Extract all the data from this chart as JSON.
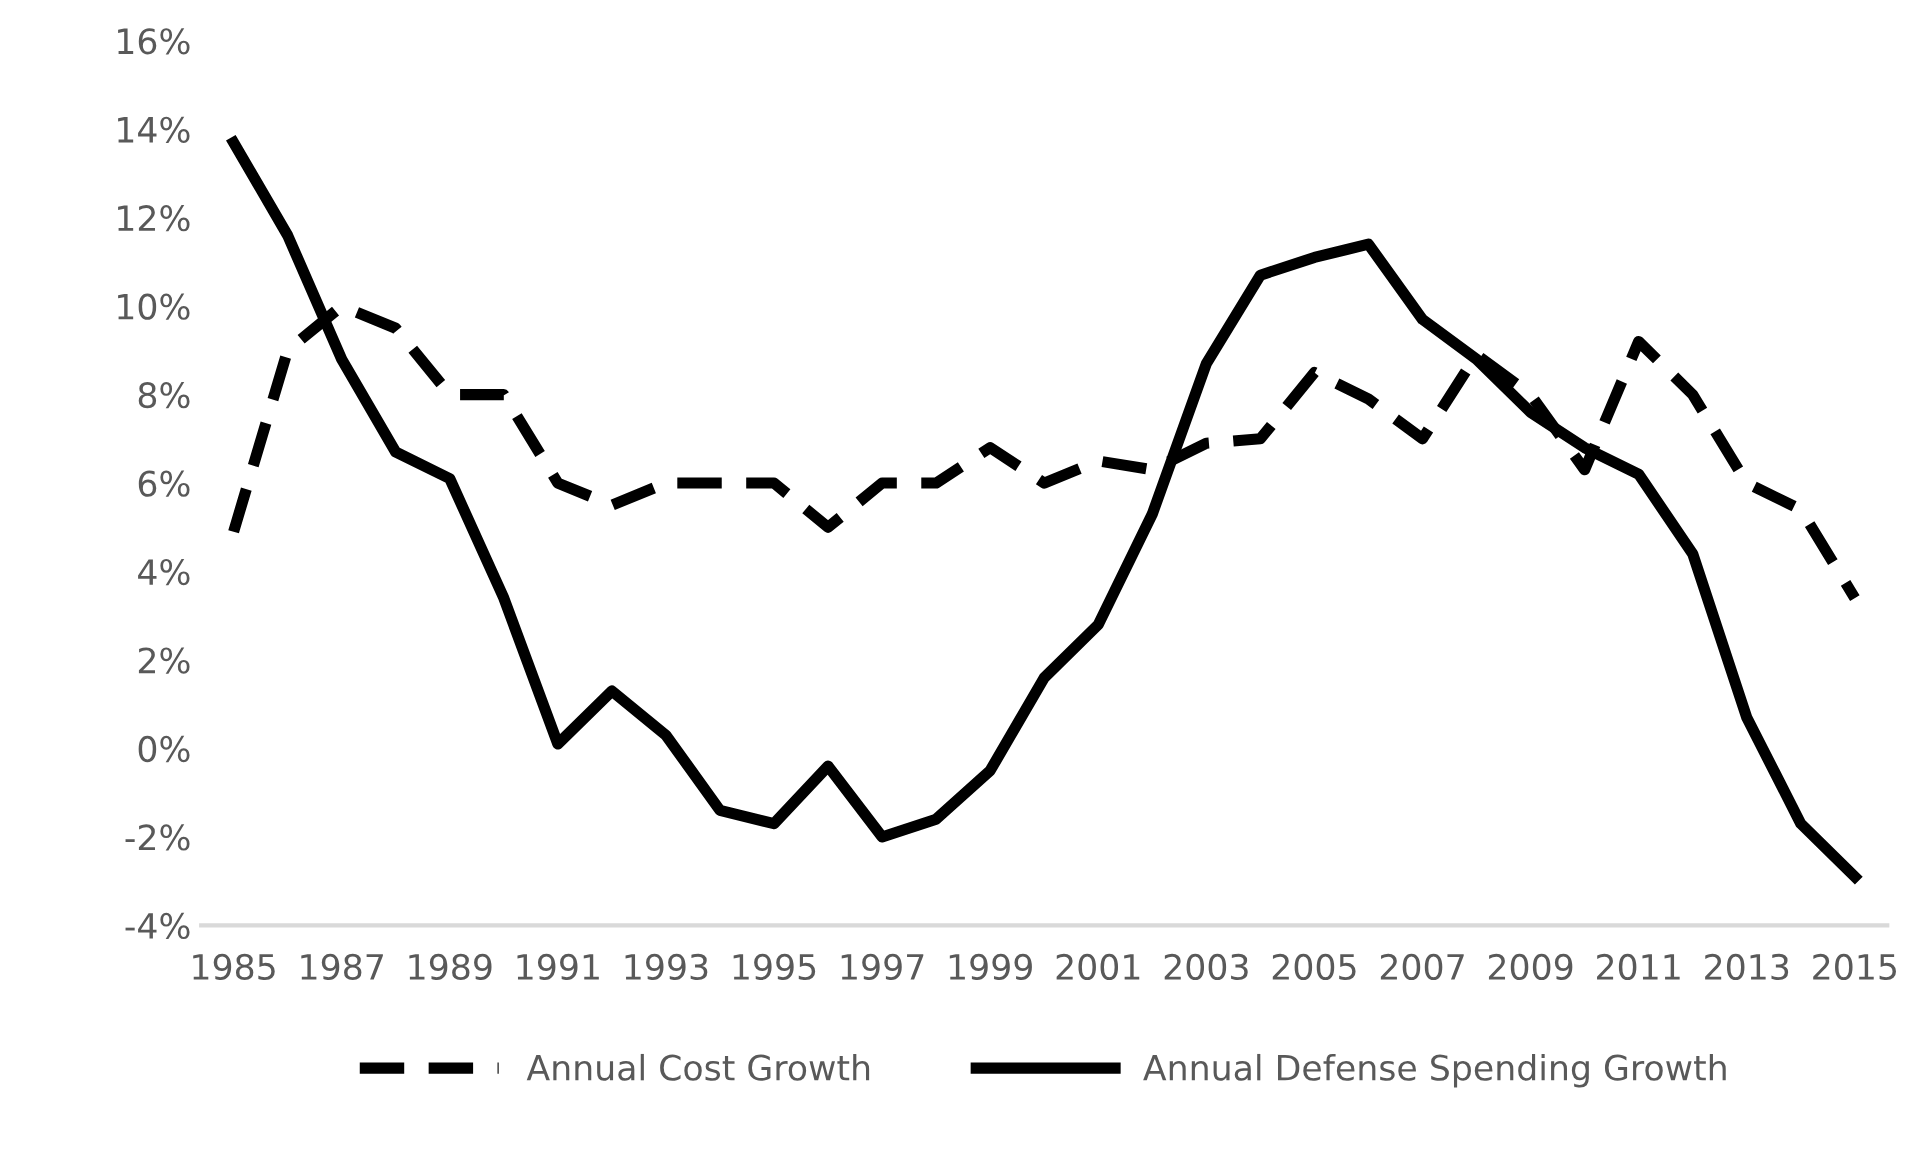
{
  "chart_data": {
    "type": "line",
    "categories": [
      "1985",
      null,
      "1987",
      null,
      "1989",
      null,
      "1991",
      null,
      "1993",
      null,
      "1995",
      null,
      "1997",
      null,
      "1999",
      null,
      "2001",
      null,
      "2003",
      null,
      "2005",
      null,
      "2007",
      null,
      "2009",
      null,
      "2011",
      null,
      "2013",
      null,
      "2015"
    ],
    "series": [
      {
        "name": "Annual Cost Growth",
        "color": "#000000",
        "line_style": "dashed",
        "values": [
          4.9,
          9.0,
          10.0,
          9.5,
          8.0,
          8.0,
          6.0,
          5.5,
          6.0,
          6.0,
          6.0,
          5.0,
          6.0,
          6.0,
          6.8,
          6.0,
          6.5,
          6.3,
          6.9,
          7.0,
          8.5,
          7.9,
          7.0,
          8.9,
          8.0,
          6.3,
          9.2,
          8.0,
          6.0,
          5.4,
          3.4
        ]
      },
      {
        "name": "Annual Defense Spending Growth",
        "color": "#000000",
        "line_style": "solid",
        "values": [
          13.7,
          11.6,
          8.8,
          6.7,
          6.1,
          3.4,
          0.1,
          1.3,
          0.3,
          -1.4,
          -1.7,
          -0.4,
          -2.0,
          -1.6,
          -0.5,
          1.6,
          2.8,
          5.3,
          8.7,
          10.7,
          11.1,
          11.4,
          9.7,
          8.8,
          7.6,
          6.8,
          6.2,
          4.4,
          0.7,
          -1.7,
          -2.9
        ]
      }
    ],
    "ylim": [
      -4,
      16
    ],
    "yticks": [
      {
        "value": -4,
        "label": "-4%"
      },
      {
        "value": -2,
        "label": "-2%"
      },
      {
        "value": 0,
        "label": "0%"
      },
      {
        "value": 2,
        "label": "2%"
      },
      {
        "value": 4,
        "label": "4%"
      },
      {
        "value": 6,
        "label": "6%"
      },
      {
        "value": 8,
        "label": "8%"
      },
      {
        "value": 10,
        "label": "10%"
      },
      {
        "value": 12,
        "label": "12%"
      },
      {
        "value": 14,
        "label": "14%"
      },
      {
        "value": 16,
        "label": "16%"
      }
    ],
    "grid": false,
    "legend": "bottom"
  }
}
